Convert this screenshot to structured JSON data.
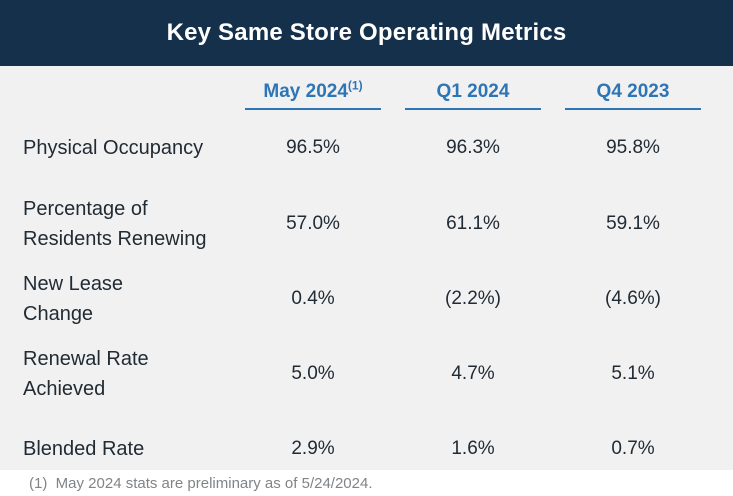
{
  "colors": {
    "navy": "#14304a",
    "blue": "#2e75b6",
    "ink": "#212b34",
    "bg": "#f1f1f2",
    "muted": "#808487"
  },
  "header": {
    "title": "Key Same Store Operating Metrics"
  },
  "table": {
    "columns": [
      {
        "label": "May 2024",
        "superscript": "(1)"
      },
      {
        "label": "Q1 2024",
        "superscript": ""
      },
      {
        "label": "Q4 2023",
        "superscript": ""
      }
    ],
    "rows": [
      {
        "label": "Physical Occupancy",
        "values": [
          "96.5%",
          "96.3%",
          "95.8%"
        ]
      },
      {
        "label": "Percentage of\nResidents Renewing",
        "values": [
          "57.0%",
          "61.1%",
          "59.1%"
        ]
      },
      {
        "label": "New Lease\nChange",
        "values": [
          "0.4%",
          "(2.2%)",
          "(4.6%)"
        ]
      },
      {
        "label": "Renewal Rate\nAchieved",
        "values": [
          "5.0%",
          "4.7%",
          "5.1%"
        ]
      },
      {
        "label": "Blended Rate",
        "values": [
          "2.9%",
          "1.6%",
          "0.7%"
        ]
      }
    ]
  },
  "footnote": "(1)  May 2024 stats are preliminary as of 5/24/2024.",
  "chart_data": {
    "type": "table",
    "title": "Key Same Store Operating Metrics",
    "categories": [
      "May 2024 (1)",
      "Q1 2024",
      "Q4 2023"
    ],
    "series": [
      {
        "name": "Physical Occupancy",
        "values": [
          96.5,
          96.3,
          95.8
        ],
        "unit": "%"
      },
      {
        "name": "Percentage of Residents Renewing",
        "values": [
          57.0,
          61.1,
          59.1
        ],
        "unit": "%"
      },
      {
        "name": "New Lease Change",
        "values": [
          0.4,
          -2.2,
          -4.6
        ],
        "unit": "%"
      },
      {
        "name": "Renewal Rate Achieved",
        "values": [
          5.0,
          4.7,
          5.1
        ],
        "unit": "%"
      },
      {
        "name": "Blended Rate",
        "values": [
          2.9,
          1.6,
          0.7
        ],
        "unit": "%"
      }
    ],
    "footnote": "(1) May 2024 stats are preliminary as of 5/24/2024."
  }
}
